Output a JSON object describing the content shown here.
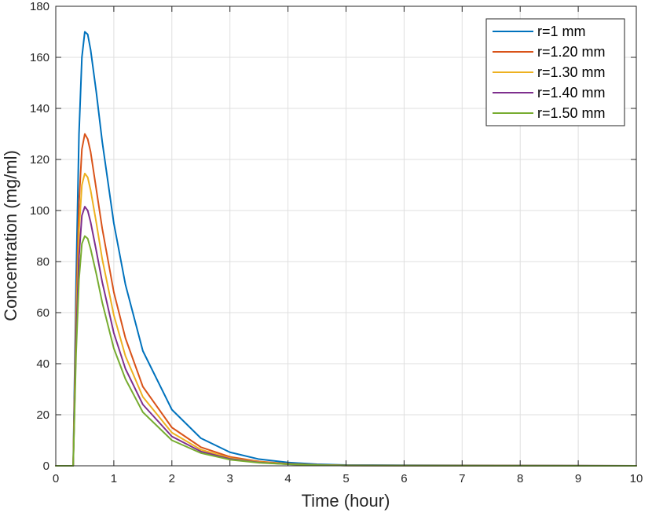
{
  "chart_data": {
    "type": "line",
    "title": "",
    "xlabel": "Time (hour)",
    "ylabel": "Concentration (mg/ml)",
    "xlim": [
      0,
      10
    ],
    "ylim": [
      0,
      180
    ],
    "xticks": [
      0,
      1,
      2,
      3,
      4,
      5,
      6,
      7,
      8,
      9,
      10
    ],
    "yticks": [
      0,
      20,
      40,
      60,
      80,
      100,
      120,
      140,
      160,
      180
    ],
    "grid": true,
    "legend_position": "top-right",
    "series": [
      {
        "name": "r=1 mm",
        "color": "#0072BD",
        "x": [
          0,
          0.3,
          0.35,
          0.4,
          0.45,
          0.5,
          0.55,
          0.6,
          0.7,
          0.8,
          1.0,
          1.2,
          1.5,
          2.0,
          2.5,
          3.0,
          3.5,
          4.0,
          4.5,
          5.0,
          10.0
        ],
        "y": [
          0,
          0,
          72,
          130,
          160,
          170,
          169,
          163,
          146,
          127,
          95,
          71,
          45,
          22,
          10.8,
          5.3,
          2.6,
          1.3,
          0.6,
          0.3,
          0
        ]
      },
      {
        "name": "r=1.20 mm",
        "color": "#D95319",
        "x": [
          0,
          0.3,
          0.35,
          0.4,
          0.45,
          0.5,
          0.55,
          0.6,
          0.7,
          0.8,
          1.0,
          1.2,
          1.5,
          2.0,
          2.5,
          3.0,
          3.5,
          4.0,
          4.5,
          5.0,
          10.0
        ],
        "y": [
          0,
          0,
          60,
          103,
          124,
          130,
          128,
          123,
          108,
          93,
          68,
          50,
          31,
          15,
          7.3,
          3.5,
          1.7,
          0.8,
          0.4,
          0.2,
          0
        ]
      },
      {
        "name": "r=1.30 mm",
        "color": "#EDB120",
        "x": [
          0,
          0.3,
          0.35,
          0.4,
          0.45,
          0.5,
          0.55,
          0.6,
          0.7,
          0.8,
          1.0,
          1.2,
          1.5,
          2.0,
          2.5,
          3.0,
          3.5,
          4.0,
          4.5,
          5.0,
          10.0
        ],
        "y": [
          0,
          0,
          54,
          92,
          110,
          114.5,
          113,
          108,
          95,
          81,
          59,
          43,
          27,
          13,
          6.3,
          3.0,
          1.5,
          0.7,
          0.3,
          0.1,
          0
        ]
      },
      {
        "name": "r=1.40 mm",
        "color": "#7E2F8E",
        "x": [
          0,
          0.3,
          0.35,
          0.4,
          0.45,
          0.5,
          0.55,
          0.6,
          0.7,
          0.8,
          1.0,
          1.2,
          1.5,
          2.0,
          2.5,
          3.0,
          3.5,
          4.0,
          4.5,
          5.0,
          10.0
        ],
        "y": [
          0,
          0,
          49,
          82,
          98,
          101.5,
          100,
          95.5,
          84,
          72,
          52,
          38,
          24,
          11.5,
          5.6,
          2.7,
          1.3,
          0.6,
          0.3,
          0.1,
          0
        ]
      },
      {
        "name": "r=1.50 mm",
        "color": "#77AC30",
        "x": [
          0,
          0.3,
          0.35,
          0.4,
          0.45,
          0.5,
          0.55,
          0.6,
          0.7,
          0.8,
          1.0,
          1.2,
          1.5,
          2.0,
          2.5,
          3.0,
          3.5,
          4.0,
          4.5,
          5.0,
          10.0
        ],
        "y": [
          0,
          0,
          44,
          73,
          87,
          90,
          89,
          85,
          75,
          64,
          46,
          34,
          21,
          10,
          5.0,
          2.4,
          1.2,
          0.6,
          0.3,
          0.1,
          0
        ]
      }
    ]
  }
}
